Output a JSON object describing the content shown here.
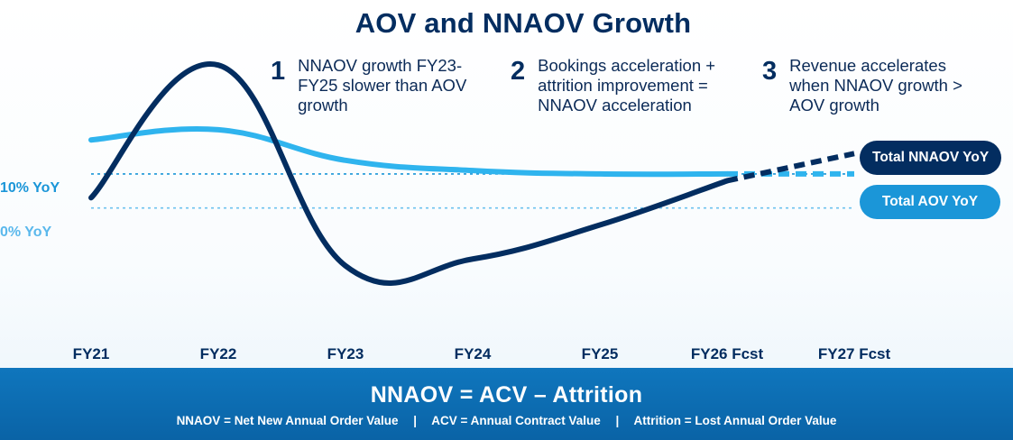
{
  "title": "AOV and NNAOV Growth",
  "callouts": [
    {
      "number": "1",
      "text": "NNAOV growth FY23-FY25 slower than AOV growth"
    },
    {
      "number": "2",
      "text": "Bookings acceleration + attrition improvement = NNAOV acceleration"
    },
    {
      "number": "3",
      "text": "Revenue accelerates when NNAOV growth > AOV growth"
    }
  ],
  "footer": {
    "formula": "NNAOV = ACV – Attrition",
    "definitions": [
      "NNAOV = Net New Annual Order Value",
      "ACV = Annual Contract Value",
      "Attrition = Lost Annual Order Value"
    ],
    "separator": "|"
  },
  "colors": {
    "nnaov": "#032d60",
    "aov": "#2fb4ee",
    "label_aov_bg": "#1b96d8",
    "ref_10": "#1b96d8",
    "ref_0": "#6cc2ef"
  },
  "chart_data": {
    "type": "line",
    "title": "AOV and NNAOV Growth",
    "categories": [
      "FY21",
      "FY22",
      "FY23",
      "FY24",
      "FY25",
      "FY26 Fcst",
      "FY27 Fcst"
    ],
    "reference_lines": [
      {
        "label": "10% YoY",
        "value": 10
      },
      {
        "label": "0% YoY",
        "value": 0
      }
    ],
    "ylim": [
      -25,
      50
    ],
    "series": [
      {
        "name": "Total NNAOV YoY",
        "color": "#032d60",
        "values": [
          3,
          42,
          -17,
          -15,
          -5,
          8,
          16
        ],
        "forecast_from_index": 5
      },
      {
        "name": "Total AOV YoY",
        "color": "#2fb4ee",
        "values": [
          20,
          23,
          14,
          11,
          10,
          10,
          10
        ],
        "forecast_from_index": 5
      }
    ],
    "legend": "right"
  }
}
